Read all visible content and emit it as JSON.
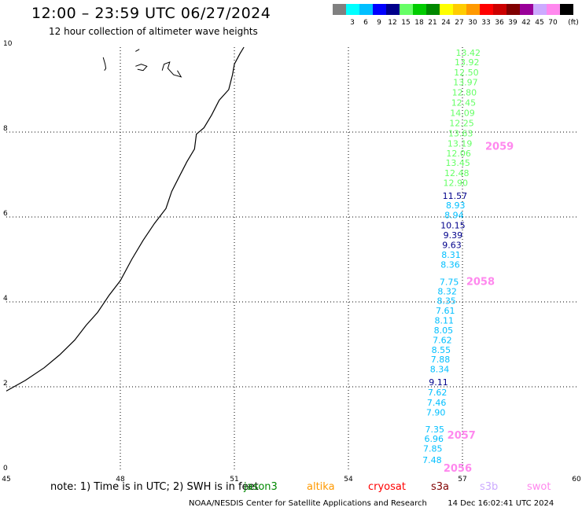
{
  "header": {
    "title": "12:00 – 23:59 UTC 06/27/2024",
    "subtitle": "12 hour collection of altimeter wave heights"
  },
  "color_scale": {
    "unit": "(ft)",
    "swatches": [
      {
        "color": "#808080",
        "label": ""
      },
      {
        "color": "#00ffff",
        "label": "3"
      },
      {
        "color": "#00bfff",
        "label": "6"
      },
      {
        "color": "#0000ff",
        "label": "9"
      },
      {
        "color": "#00008b",
        "label": "12"
      },
      {
        "color": "#66ff66",
        "label": "15"
      },
      {
        "color": "#00cc00",
        "label": "18"
      },
      {
        "color": "#008800",
        "label": "21"
      },
      {
        "color": "#ffff00",
        "label": "24"
      },
      {
        "color": "#ffcc00",
        "label": "27"
      },
      {
        "color": "#ff9900",
        "label": "30"
      },
      {
        "color": "#ff0000",
        "label": "33"
      },
      {
        "color": "#cc0000",
        "label": "36"
      },
      {
        "color": "#800000",
        "label": "39"
      },
      {
        "color": "#990099",
        "label": "42"
      },
      {
        "color": "#ccaaff",
        "label": "45"
      },
      {
        "color": "#ff88ee",
        "label": "70"
      },
      {
        "color": "#000000",
        "label": ""
      }
    ]
  },
  "map": {
    "lat_labels": [
      "10",
      "8",
      "6",
      "4",
      "2",
      "0"
    ],
    "lon_labels": [
      "45",
      "48",
      "51",
      "54",
      "57",
      "60"
    ],
    "lat_values": [
      10,
      8,
      6,
      4,
      2,
      0
    ],
    "lon_values": [
      45,
      48,
      51,
      54,
      57,
      60
    ],
    "lon_range": [
      45,
      60
    ],
    "lat_range": [
      0,
      10
    ],
    "coastline": [
      [
        45.0,
        1.9
      ],
      [
        45.5,
        2.15
      ],
      [
        46.0,
        2.45
      ],
      [
        46.4,
        2.75
      ],
      [
        46.8,
        3.1
      ],
      [
        47.1,
        3.45
      ],
      [
        47.4,
        3.75
      ],
      [
        47.7,
        4.15
      ],
      [
        48.0,
        4.5
      ],
      [
        48.3,
        5.0
      ],
      [
        48.6,
        5.45
      ],
      [
        48.9,
        5.85
      ],
      [
        49.2,
        6.2
      ],
      [
        49.35,
        6.6
      ],
      [
        49.55,
        6.95
      ],
      [
        49.75,
        7.3
      ],
      [
        49.95,
        7.6
      ],
      [
        50.0,
        7.95
      ],
      [
        50.2,
        8.1
      ],
      [
        50.4,
        8.4
      ],
      [
        50.6,
        8.75
      ],
      [
        50.85,
        9.0
      ],
      [
        50.95,
        9.35
      ],
      [
        51.0,
        9.6
      ],
      [
        51.15,
        9.85
      ],
      [
        51.25,
        10.0
      ]
    ],
    "islands": [
      [
        [
          47.55,
          9.76
        ],
        [
          47.6,
          9.6
        ],
        [
          47.62,
          9.5
        ],
        [
          47.58,
          9.45
        ]
      ],
      [
        [
          48.4,
          9.55
        ],
        [
          48.55,
          9.6
        ],
        [
          48.7,
          9.55
        ],
        [
          48.6,
          9.45
        ],
        [
          48.45,
          9.48
        ]
      ],
      [
        [
          48.4,
          9.9
        ],
        [
          48.5,
          9.95
        ]
      ],
      [
        [
          49.1,
          9.45
        ],
        [
          49.15,
          9.6
        ],
        [
          49.3,
          9.65
        ],
        [
          49.25,
          9.5
        ],
        [
          49.4,
          9.35
        ],
        [
          49.6,
          9.3
        ],
        [
          49.5,
          9.45
        ]
      ]
    ],
    "orbit_labels": [
      {
        "text": "2059",
        "lon": 57.6,
        "lat": 7.58,
        "color": "#ff88ee"
      },
      {
        "text": "2058",
        "lon": 57.1,
        "lat": 4.4,
        "color": "#ff88ee"
      },
      {
        "text": "2057",
        "lon": 56.6,
        "lat": 0.78,
        "color": "#ff88ee"
      },
      {
        "text": "2056",
        "lon": 56.5,
        "lat": 0.0,
        "color": "#ff88ee"
      }
    ],
    "observations": [
      {
        "v": "13.42",
        "lon": 57.15,
        "lat": 9.8,
        "c": "#66ff66"
      },
      {
        "v": "13.92",
        "lon": 57.12,
        "lat": 9.57,
        "c": "#66ff66"
      },
      {
        "v": "12.50",
        "lon": 57.1,
        "lat": 9.33,
        "c": "#66ff66"
      },
      {
        "v": "13.97",
        "lon": 57.08,
        "lat": 9.1,
        "c": "#66ff66"
      },
      {
        "v": "12.80",
        "lon": 57.05,
        "lat": 8.86,
        "c": "#66ff66"
      },
      {
        "v": "12.45",
        "lon": 57.03,
        "lat": 8.62,
        "c": "#66ff66"
      },
      {
        "v": "14.09",
        "lon": 57.0,
        "lat": 8.38,
        "c": "#66ff66"
      },
      {
        "v": "12.25",
        "lon": 56.98,
        "lat": 8.14,
        "c": "#66ff66"
      },
      {
        "v": "13.63",
        "lon": 56.95,
        "lat": 7.9,
        "c": "#66ff66"
      },
      {
        "v": "13.19",
        "lon": 56.93,
        "lat": 7.66,
        "c": "#66ff66"
      },
      {
        "v": "12.06",
        "lon": 56.9,
        "lat": 7.43,
        "c": "#66ff66"
      },
      {
        "v": "13.45",
        "lon": 56.88,
        "lat": 7.2,
        "c": "#66ff66"
      },
      {
        "v": "12.48",
        "lon": 56.85,
        "lat": 6.96,
        "c": "#66ff66"
      },
      {
        "v": "12.90",
        "lon": 56.82,
        "lat": 6.73,
        "c": "#66ff66"
      },
      {
        "v": "11.57",
        "lon": 56.8,
        "lat": 6.43,
        "c": "#00008b"
      },
      {
        "v": "8.93",
        "lon": 56.82,
        "lat": 6.2,
        "c": "#00bfff"
      },
      {
        "v": "8.94",
        "lon": 56.78,
        "lat": 5.97,
        "c": "#00bfff"
      },
      {
        "v": "10.15",
        "lon": 56.75,
        "lat": 5.73,
        "c": "#00008b"
      },
      {
        "v": "9.39",
        "lon": 56.75,
        "lat": 5.5,
        "c": "#00008b"
      },
      {
        "v": "9.63",
        "lon": 56.72,
        "lat": 5.27,
        "c": "#00008b"
      },
      {
        "v": "8.31",
        "lon": 56.7,
        "lat": 5.04,
        "c": "#00bfff"
      },
      {
        "v": "8.36",
        "lon": 56.68,
        "lat": 4.81,
        "c": "#00bfff"
      },
      {
        "v": "7.75",
        "lon": 56.65,
        "lat": 4.4,
        "c": "#00bfff"
      },
      {
        "v": "8.32",
        "lon": 56.6,
        "lat": 4.18,
        "c": "#00bfff"
      },
      {
        "v": "8.35",
        "lon": 56.58,
        "lat": 3.95,
        "c": "#00bfff"
      },
      {
        "v": "7.61",
        "lon": 56.55,
        "lat": 3.72,
        "c": "#00bfff"
      },
      {
        "v": "8.11",
        "lon": 56.52,
        "lat": 3.49,
        "c": "#00bfff"
      },
      {
        "v": "8.05",
        "lon": 56.5,
        "lat": 3.26,
        "c": "#00bfff"
      },
      {
        "v": "7.62",
        "lon": 56.47,
        "lat": 3.03,
        "c": "#00bfff"
      },
      {
        "v": "8.55",
        "lon": 56.44,
        "lat": 2.8,
        "c": "#00bfff"
      },
      {
        "v": "7.88",
        "lon": 56.42,
        "lat": 2.57,
        "c": "#00bfff"
      },
      {
        "v": "8.34",
        "lon": 56.4,
        "lat": 2.34,
        "c": "#00bfff"
      },
      {
        "v": "9.11",
        "lon": 56.37,
        "lat": 2.04,
        "c": "#00008b"
      },
      {
        "v": "7.62",
        "lon": 56.34,
        "lat": 1.8,
        "c": "#00bfff"
      },
      {
        "v": "7.46",
        "lon": 56.32,
        "lat": 1.56,
        "c": "#00bfff"
      },
      {
        "v": "7.90",
        "lon": 56.3,
        "lat": 1.32,
        "c": "#00bfff"
      },
      {
        "v": "7.35",
        "lon": 56.27,
        "lat": 0.93,
        "c": "#00bfff"
      },
      {
        "v": "6.96",
        "lon": 56.25,
        "lat": 0.7,
        "c": "#00bfff"
      },
      {
        "v": "7.85",
        "lon": 56.22,
        "lat": 0.47,
        "c": "#00bfff"
      },
      {
        "v": "7.48",
        "lon": 56.2,
        "lat": 0.2,
        "c": "#00bfff"
      }
    ]
  },
  "notes": {
    "text": "note:  1) Time is in UTC;  2) SWH is in feet",
    "satellites": [
      {
        "name": "jason3",
        "color": "#008800"
      },
      {
        "name": "altika",
        "color": "#ff9900"
      },
      {
        "name": "cryosat",
        "color": "#ff0000"
      },
      {
        "name": "s3a",
        "color": "#800000"
      },
      {
        "name": "s3b",
        "color": "#ccaaff"
      },
      {
        "name": "swot",
        "color": "#ff88ee"
      }
    ]
  },
  "footer": {
    "credit": "NOAA/NESDIS Center for Satellite Applications and Research",
    "timestamp": "14 Dec 16:02:41 UTC 2024"
  }
}
